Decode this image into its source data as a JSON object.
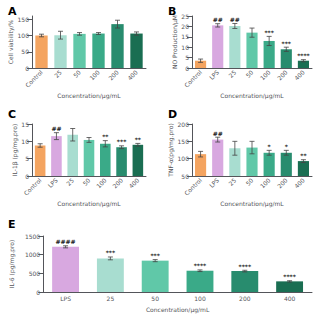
{
  "chart_data": [
    {
      "type": "bar",
      "title": "A",
      "categories": [
        "Control",
        "25",
        "50",
        "100",
        "200",
        "400"
      ],
      "values": [
        100,
        101,
        105,
        106,
        135,
        106
      ],
      "errors": [
        4,
        12,
        4,
        3,
        12,
        5
      ],
      "colors": [
        "#F4A460",
        "#A8DDD0",
        "#60C8A8",
        "#3AAA88",
        "#288C6E",
        "#1A6E52"
      ],
      "ylabel": "Cell viability/%",
      "xlabel": "Concentration/μg/mL",
      "ylim": [
        0,
        160
      ],
      "yticks": [
        0,
        50,
        100,
        150
      ],
      "grid": false
    },
    {
      "type": "bar",
      "title": "B",
      "categories": [
        "Control",
        "LPS",
        "25",
        "50",
        "100",
        "200",
        "400"
      ],
      "values": [
        3.5,
        20.5,
        20.2,
        17.0,
        13.0,
        9.0,
        3.5
      ],
      "errors": [
        0.8,
        0.8,
        1.2,
        2.2,
        2.2,
        1.0,
        0.5
      ],
      "colors": [
        "#F4A460",
        "#D8A8E0",
        "#A8DDD0",
        "#60C8A8",
        "#3AAA88",
        "#288C6E",
        "#1A6E52"
      ],
      "ylabel": "NO Production/μM",
      "xlabel": "Concentration/μg/mL",
      "ylim": [
        0,
        25
      ],
      "yticks": [
        0,
        5,
        10,
        15,
        20,
        25
      ],
      "grid": false,
      "annotations": [
        {
          "category": "LPS",
          "text": "##"
        },
        {
          "category": "25",
          "text": "##"
        },
        {
          "category": "100",
          "text": "***"
        },
        {
          "category": "200",
          "text": "***"
        },
        {
          "category": "400",
          "text": "****"
        }
      ]
    },
    {
      "type": "bar",
      "title": "C",
      "categories": [
        "Control",
        "LPS",
        "25",
        "50",
        "100",
        "200",
        "400"
      ],
      "values": [
        8.8,
        11.5,
        11.9,
        10.4,
        9.3,
        8.3,
        9.0
      ],
      "errors": [
        0.5,
        1.0,
        1.8,
        0.7,
        0.9,
        0.4,
        0.4
      ],
      "colors": [
        "#F4A460",
        "#D8A8E0",
        "#A8DDD0",
        "#60C8A8",
        "#3AAA88",
        "#288C6E",
        "#1A6E52"
      ],
      "ylabel": "IL-1β (pg/mg.pro)",
      "xlabel": "Concentration/μg/mL",
      "ylim": [
        0,
        15
      ],
      "yticks": [
        0,
        5,
        10,
        15
      ],
      "grid": false,
      "annotations": [
        {
          "category": "LPS",
          "text": "##"
        },
        {
          "category": "100",
          "text": "**"
        },
        {
          "category": "200",
          "text": "***"
        },
        {
          "category": "400",
          "text": "**"
        }
      ]
    },
    {
      "type": "bar",
      "title": "D",
      "categories": [
        "Control",
        "LPS",
        "25",
        "50",
        "100",
        "200",
        "400"
      ],
      "values": [
        113,
        155,
        130,
        132,
        117,
        117,
        93
      ],
      "errors": [
        8,
        7,
        20,
        18,
        7,
        7,
        4
      ],
      "colors": [
        "#F4A460",
        "#D8A8E0",
        "#A8DDD0",
        "#60C8A8",
        "#3AAA88",
        "#288C6E",
        "#1A6E52"
      ],
      "ylabel": "TNF-α(pg/mg.pro)",
      "xlabel": "Concentration/μg/mL",
      "ylim": [
        50,
        200
      ],
      "yticks": [
        50,
        100,
        150,
        200
      ],
      "grid": false,
      "annotations": [
        {
          "category": "LPS",
          "text": "##"
        },
        {
          "category": "100",
          "text": "*"
        },
        {
          "category": "200",
          "text": "*"
        },
        {
          "category": "400",
          "text": "**"
        }
      ]
    },
    {
      "type": "bar",
      "title": "E",
      "categories": [
        "LPS",
        "25",
        "50",
        "100",
        "200",
        "400"
      ],
      "values": [
        1210,
        900,
        840,
        570,
        560,
        285
      ],
      "errors": [
        28,
        38,
        28,
        22,
        22,
        18
      ],
      "colors": [
        "#D8A8E0",
        "#A8DDD0",
        "#60C8A8",
        "#3AAA88",
        "#288C6E",
        "#1A6E52"
      ],
      "ylabel": "IL-6 (pg/mg.pro)",
      "xlabel": "Concentration/μg/mL",
      "ylim": [
        0,
        1500
      ],
      "yticks": [
        0,
        500,
        1000,
        1500
      ],
      "grid": false,
      "annotations": [
        {
          "category": "LPS",
          "text": "####"
        },
        {
          "category": "25",
          "text": "***"
        },
        {
          "category": "50",
          "text": "***"
        },
        {
          "category": "100",
          "text": "****"
        },
        {
          "category": "200",
          "text": "****"
        },
        {
          "category": "400",
          "text": "****"
        }
      ]
    }
  ]
}
